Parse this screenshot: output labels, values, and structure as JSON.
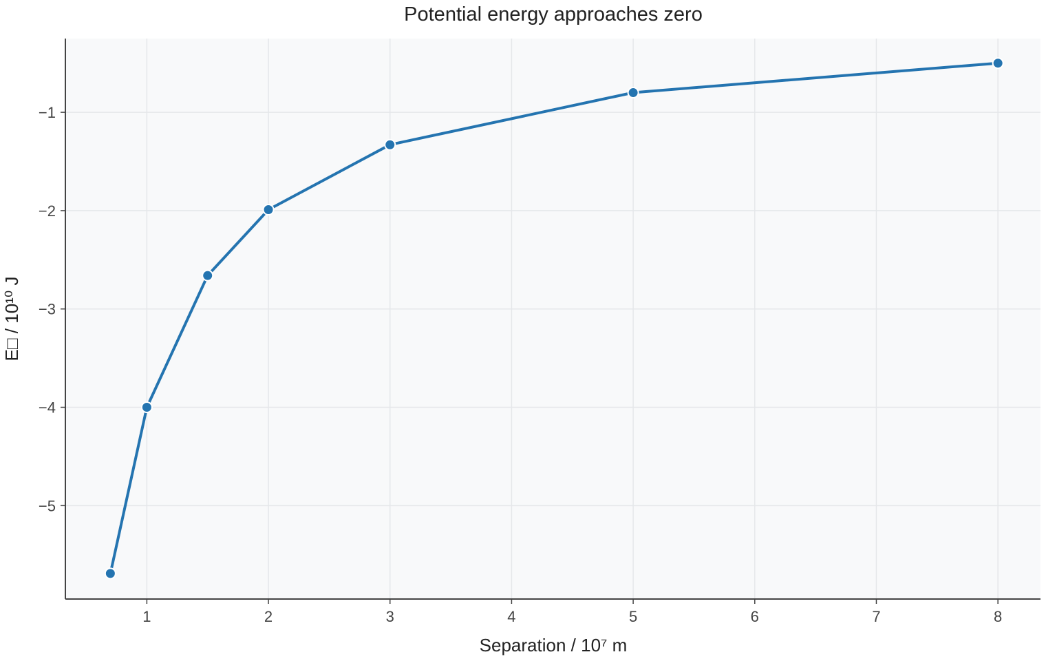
{
  "chart_data": {
    "type": "line",
    "title": "Potential energy approaches zero",
    "xlabel": "Separation / 10⁷ m",
    "ylabel": "E□ / 10¹⁰ J",
    "xlim": [
      0.33,
      8.35
    ],
    "ylim": [
      -5.95,
      -0.25
    ],
    "xticks": [
      1,
      2,
      3,
      4,
      5,
      6,
      7,
      8
    ],
    "yticks": [
      -5,
      -4,
      -3,
      -2,
      -1
    ],
    "xtick_labels": [
      "1",
      "2",
      "3",
      "4",
      "5",
      "6",
      "7",
      "8"
    ],
    "ytick_labels": [
      "−5",
      "−4",
      "−3",
      "−2",
      "−1"
    ],
    "grid": true,
    "series": [
      {
        "x": [
          0.7,
          1,
          1.5,
          2,
          3,
          5,
          8
        ],
        "y": [
          -5.69,
          -4.0,
          -2.66,
          -1.99,
          -1.33,
          -0.8,
          -0.5
        ],
        "color": "#2474b0"
      }
    ],
    "colors": {
      "plot_background": "#f8f9fa",
      "grid": "#e5e7ea",
      "axis": "#444444",
      "line": "#2474b0"
    }
  }
}
